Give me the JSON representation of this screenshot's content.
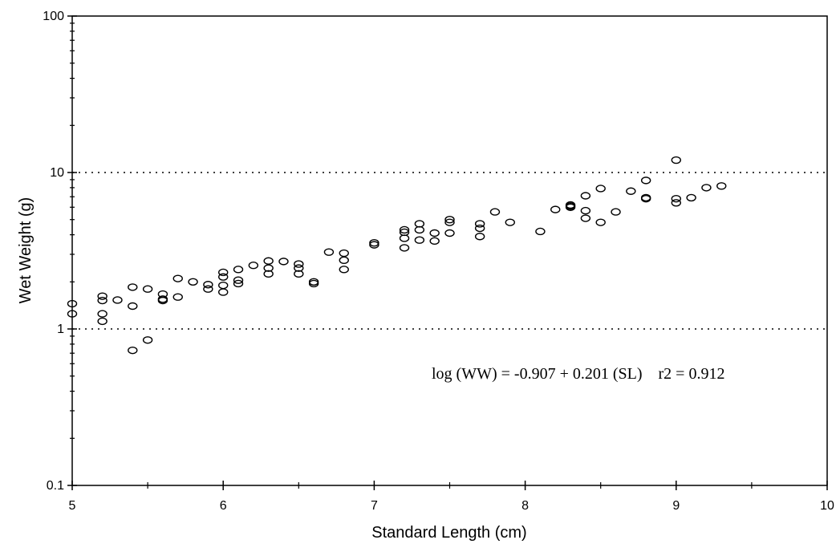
{
  "chart_data": {
    "type": "scatter",
    "title": "",
    "xlabel": "Standard Length (cm)",
    "ylabel": "Wet Weight (g)",
    "xlim": [
      5,
      10
    ],
    "ylim": [
      0.1,
      100
    ],
    "yscale": "log",
    "x_ticks": [
      "5",
      "6",
      "7",
      "8",
      "9",
      "10"
    ],
    "y_ticks": [
      "0.1",
      "1",
      "10",
      "100"
    ],
    "reference_lines_y": [
      1,
      10
    ],
    "marker": "open-ellipse",
    "annotation": "log (WW) = -0.907 + 0.201 (SL)    r2 = 0.912",
    "points": [
      [
        5.0,
        1.45
      ],
      [
        5.0,
        1.25
      ],
      [
        5.2,
        1.62
      ],
      [
        5.2,
        1.52
      ],
      [
        5.2,
        1.25
      ],
      [
        5.2,
        1.12
      ],
      [
        5.3,
        1.53
      ],
      [
        5.4,
        1.85
      ],
      [
        5.4,
        1.4
      ],
      [
        5.4,
        0.73
      ],
      [
        5.5,
        1.8
      ],
      [
        5.5,
        0.85
      ],
      [
        5.6,
        1.67
      ],
      [
        5.6,
        1.55
      ],
      [
        5.6,
        1.52
      ],
      [
        5.7,
        2.1
      ],
      [
        5.7,
        1.6
      ],
      [
        5.8,
        2.0
      ],
      [
        5.9,
        1.92
      ],
      [
        5.9,
        1.8
      ],
      [
        6.0,
        2.3
      ],
      [
        6.0,
        2.15
      ],
      [
        6.0,
        1.9
      ],
      [
        6.0,
        1.72
      ],
      [
        6.1,
        2.4
      ],
      [
        6.1,
        2.05
      ],
      [
        6.1,
        1.95
      ],
      [
        6.2,
        2.55
      ],
      [
        6.3,
        2.72
      ],
      [
        6.3,
        2.45
      ],
      [
        6.3,
        2.25
      ],
      [
        6.4,
        2.7
      ],
      [
        6.5,
        2.6
      ],
      [
        6.5,
        2.45
      ],
      [
        6.5,
        2.25
      ],
      [
        6.6,
        2.0
      ],
      [
        6.6,
        1.95
      ],
      [
        6.7,
        3.1
      ],
      [
        6.8,
        3.05
      ],
      [
        6.8,
        2.75
      ],
      [
        6.8,
        2.4
      ],
      [
        7.0,
        3.55
      ],
      [
        7.0,
        3.45
      ],
      [
        7.2,
        4.3
      ],
      [
        7.2,
        4.15
      ],
      [
        7.2,
        3.8
      ],
      [
        7.2,
        3.3
      ],
      [
        7.3,
        4.7
      ],
      [
        7.3,
        4.3
      ],
      [
        7.3,
        3.7
      ],
      [
        7.4,
        4.1
      ],
      [
        7.4,
        3.65
      ],
      [
        7.5,
        5.0
      ],
      [
        7.5,
        4.8
      ],
      [
        7.5,
        4.1
      ],
      [
        7.7,
        4.7
      ],
      [
        7.7,
        4.4
      ],
      [
        7.7,
        3.9
      ],
      [
        7.8,
        5.6
      ],
      [
        7.9,
        4.8
      ],
      [
        8.1,
        4.2
      ],
      [
        8.2,
        5.8
      ],
      [
        8.3,
        6.2
      ],
      [
        8.3,
        6.1
      ],
      [
        8.3,
        6.0
      ],
      [
        8.4,
        7.1
      ],
      [
        8.4,
        5.7
      ],
      [
        8.4,
        5.1
      ],
      [
        8.5,
        7.9
      ],
      [
        8.5,
        4.8
      ],
      [
        8.6,
        5.6
      ],
      [
        8.7,
        7.6
      ],
      [
        8.8,
        8.9
      ],
      [
        8.8,
        6.9
      ],
      [
        8.8,
        6.8
      ],
      [
        9.0,
        12.0
      ],
      [
        9.0,
        6.8
      ],
      [
        9.0,
        6.4
      ],
      [
        9.1,
        6.9
      ],
      [
        9.2,
        8.0
      ],
      [
        9.3,
        8.2
      ]
    ]
  }
}
